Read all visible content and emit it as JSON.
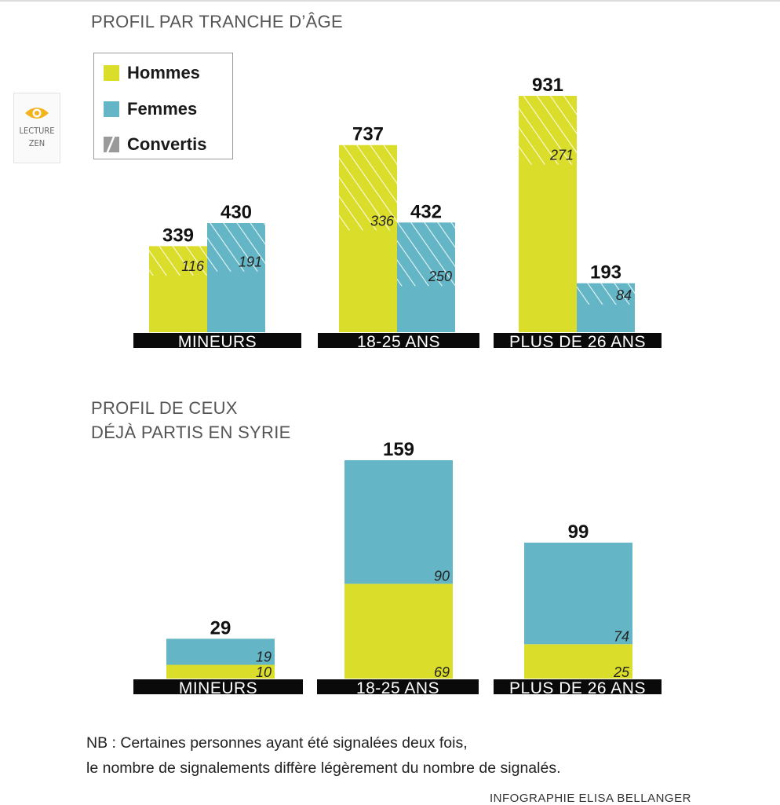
{
  "zen": {
    "label_line1": "LECTURE",
    "label_line2": "ZEN"
  },
  "legend": {
    "items": [
      {
        "label": "Hommes",
        "color": "#dbdd2b"
      },
      {
        "label": "Femmes",
        "color": "#64b6c6"
      },
      {
        "label": "Convertis",
        "color": "#9a9a9a"
      }
    ]
  },
  "colors": {
    "hommes": "#dbdd2b",
    "femmes": "#64b6c6",
    "category_bg": "#0a0a0a"
  },
  "chart_data": [
    {
      "type": "bar",
      "title": "PROFIL PAR TRANCHE D’ÂGE",
      "categories": [
        "MINEURS",
        "18-25 ANS",
        "PLUS DE 26 ANS"
      ],
      "series": [
        {
          "name": "Hommes",
          "values": [
            339,
            737,
            931
          ],
          "convertis": [
            116,
            336,
            271
          ]
        },
        {
          "name": "Femmes",
          "values": [
            430,
            432,
            193
          ],
          "convertis": [
            191,
            250,
            84
          ]
        }
      ],
      "ylim": [
        0,
        931
      ],
      "xlabel": "",
      "ylabel": ""
    },
    {
      "type": "bar",
      "stacked": true,
      "title_lines": [
        "PROFIL DE CEUX",
        "DÉJÀ PARTIS EN SYRIE"
      ],
      "categories": [
        "MINEURS",
        "18-25 ANS",
        "PLUS DE 26 ANS"
      ],
      "totals": [
        29,
        159,
        99
      ],
      "series": [
        {
          "name": "Hommes",
          "values": [
            10,
            69,
            25
          ]
        },
        {
          "name": "Femmes",
          "values": [
            19,
            90,
            74
          ]
        }
      ],
      "ylim": [
        0,
        159
      ],
      "xlabel": "",
      "ylabel": ""
    }
  ],
  "footer": {
    "nb_line1": "NB : Certaines personnes ayant été signalées deux fois,",
    "nb_line2": "le nombre de signalements diffère légèrement du nombre de signalés.",
    "credit": "INFOGRAPHIE ELISA BELLANGER"
  }
}
